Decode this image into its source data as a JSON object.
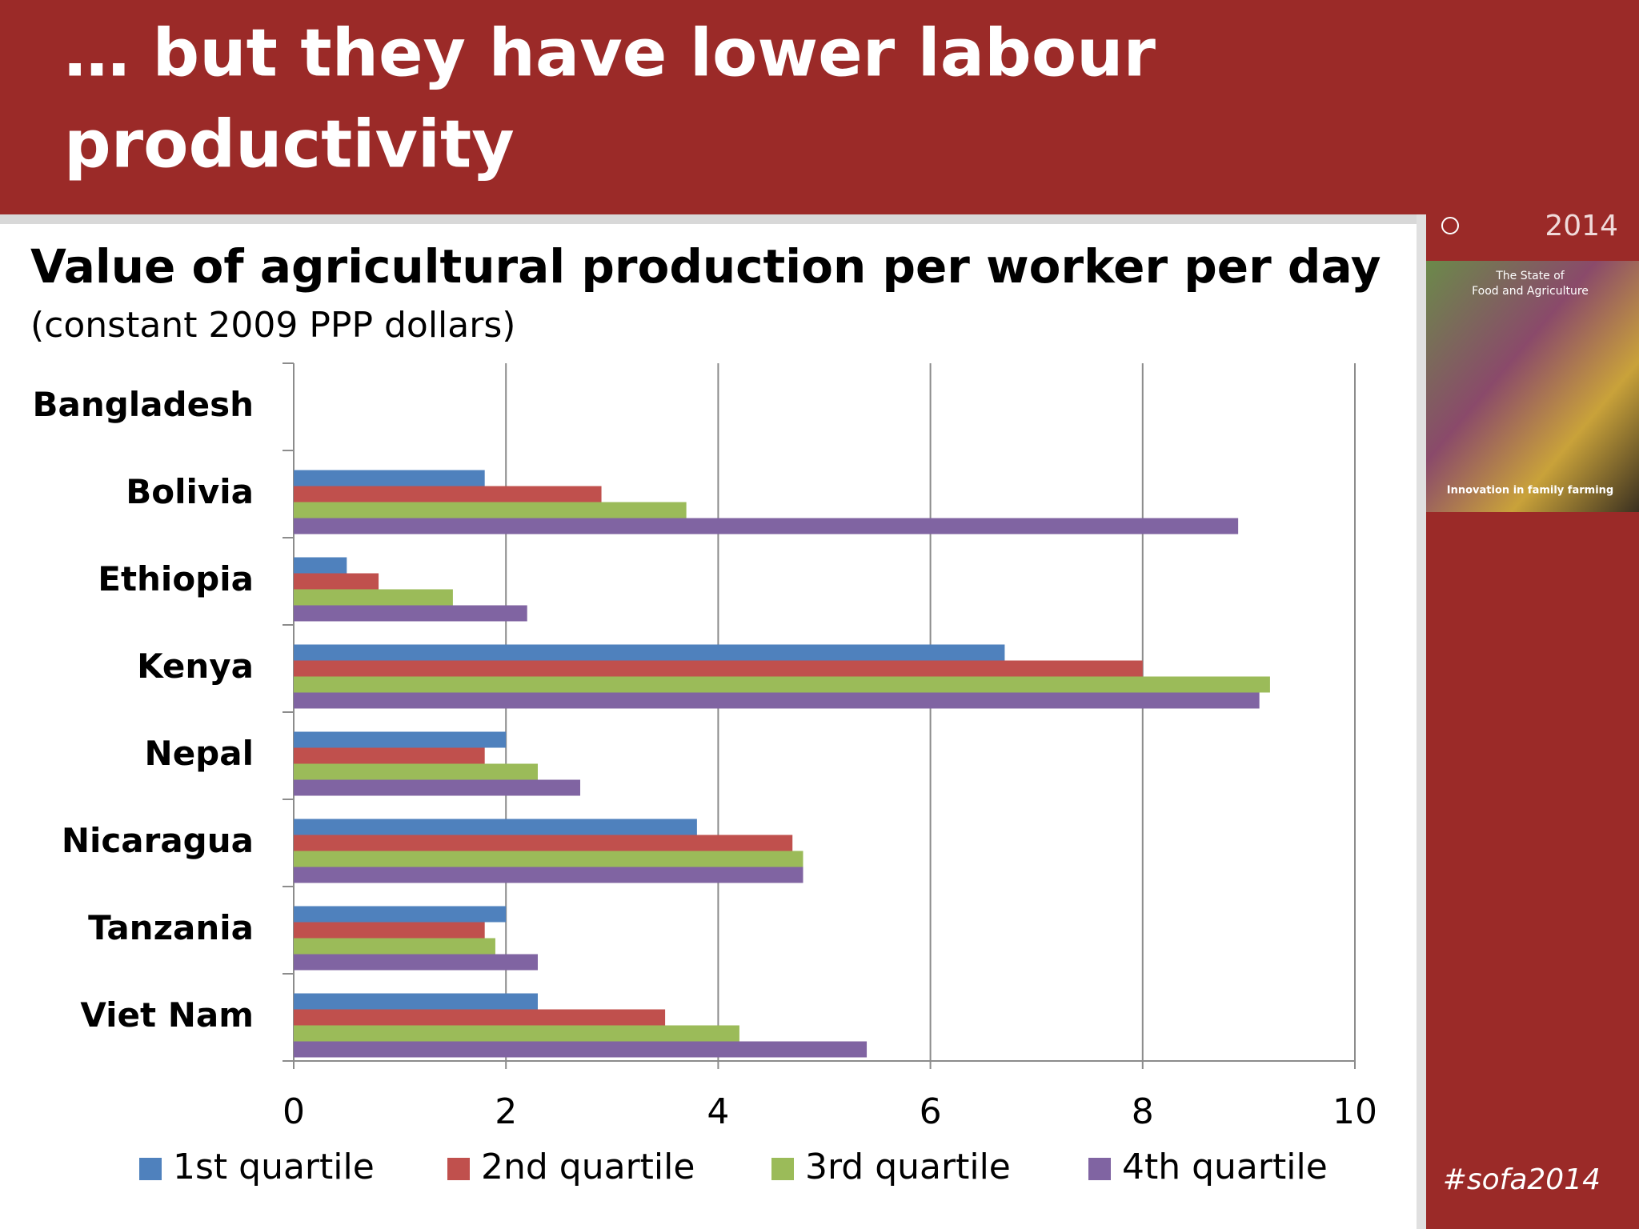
{
  "slide": {
    "title_lines": [
      "… but they have lower labour",
      "productivity"
    ],
    "hashtag": "#sofa2014",
    "cover": {
      "year": "2014",
      "title_lines": [
        "The State of",
        "Food and Agriculture"
      ],
      "subtitle": "Innovation in family farming"
    }
  },
  "chart_data": {
    "type": "hbar",
    "title": "Value of agricultural production per worker per day",
    "subtitle": "(constant 2009 PPP dollars)",
    "categories": [
      "Bangladesh",
      "Bolivia",
      "Ethiopia",
      "Kenya",
      "Nepal",
      "Nicaragua",
      "Tanzania",
      "Viet Nam"
    ],
    "series": [
      {
        "name": "1st quartile",
        "color": "#4f81bd",
        "values": [
          null,
          1.8,
          0.5,
          6.7,
          2.0,
          3.8,
          2.0,
          2.3
        ]
      },
      {
        "name": "2nd quartile",
        "color": "#c0504d",
        "values": [
          null,
          2.9,
          0.8,
          8.0,
          1.8,
          4.7,
          1.8,
          3.5
        ]
      },
      {
        "name": "3rd quartile",
        "color": "#9bbb59",
        "values": [
          null,
          3.7,
          1.5,
          9.2,
          2.3,
          4.8,
          1.9,
          4.2
        ]
      },
      {
        "name": "4th quartile",
        "color": "#8064a2",
        "values": [
          null,
          8.9,
          2.2,
          9.1,
          2.7,
          4.8,
          2.3,
          5.4
        ]
      }
    ],
    "xlim": [
      0,
      10
    ],
    "xticks": [
      0,
      2,
      4,
      6,
      8,
      10
    ],
    "grid": true,
    "legend": "bottom"
  }
}
